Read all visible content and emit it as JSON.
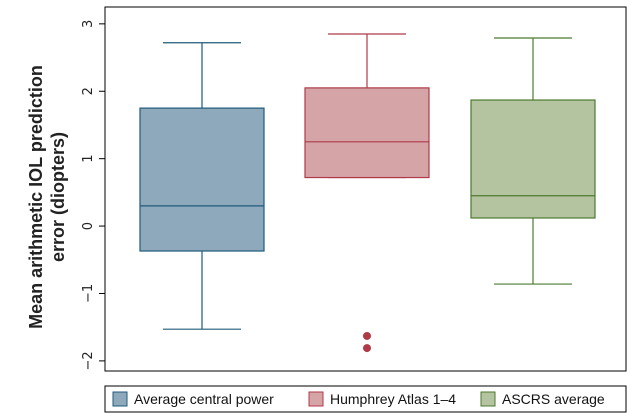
{
  "chart_data": {
    "type": "box",
    "ylabel_line1": "Mean arithmetic IOL prediction",
    "ylabel_line2": "error (diopters)",
    "ylim": [
      -2.15,
      3.25
    ],
    "yticks": [
      -2,
      -1,
      0,
      1,
      2,
      3
    ],
    "ytick_labels": [
      "−2",
      "−1",
      "0",
      "1",
      "2",
      "3"
    ],
    "grid": false,
    "legend_position": "bottom",
    "series": [
      {
        "name": "Average central power",
        "min": -1.53,
        "q1": -0.37,
        "median": 0.3,
        "q3": 1.75,
        "max": 2.72,
        "outliers": [],
        "fill": "#8fa9bc",
        "stroke": "#1f5b7a"
      },
      {
        "name": "Humphrey Atlas 1–4",
        "min": 0.72,
        "q1": 0.72,
        "median": 1.25,
        "q3": 2.05,
        "max": 2.85,
        "outliers": [
          -1.63,
          -1.81
        ],
        "fill": "#d4a4a7",
        "stroke": "#b03a48"
      },
      {
        "name": "ASCRS average",
        "min": -0.86,
        "q1": 0.12,
        "median": 0.45,
        "q3": 1.87,
        "max": 2.79,
        "outliers": [],
        "fill": "#b4c4a0",
        "stroke": "#4c7a2e"
      }
    ]
  }
}
